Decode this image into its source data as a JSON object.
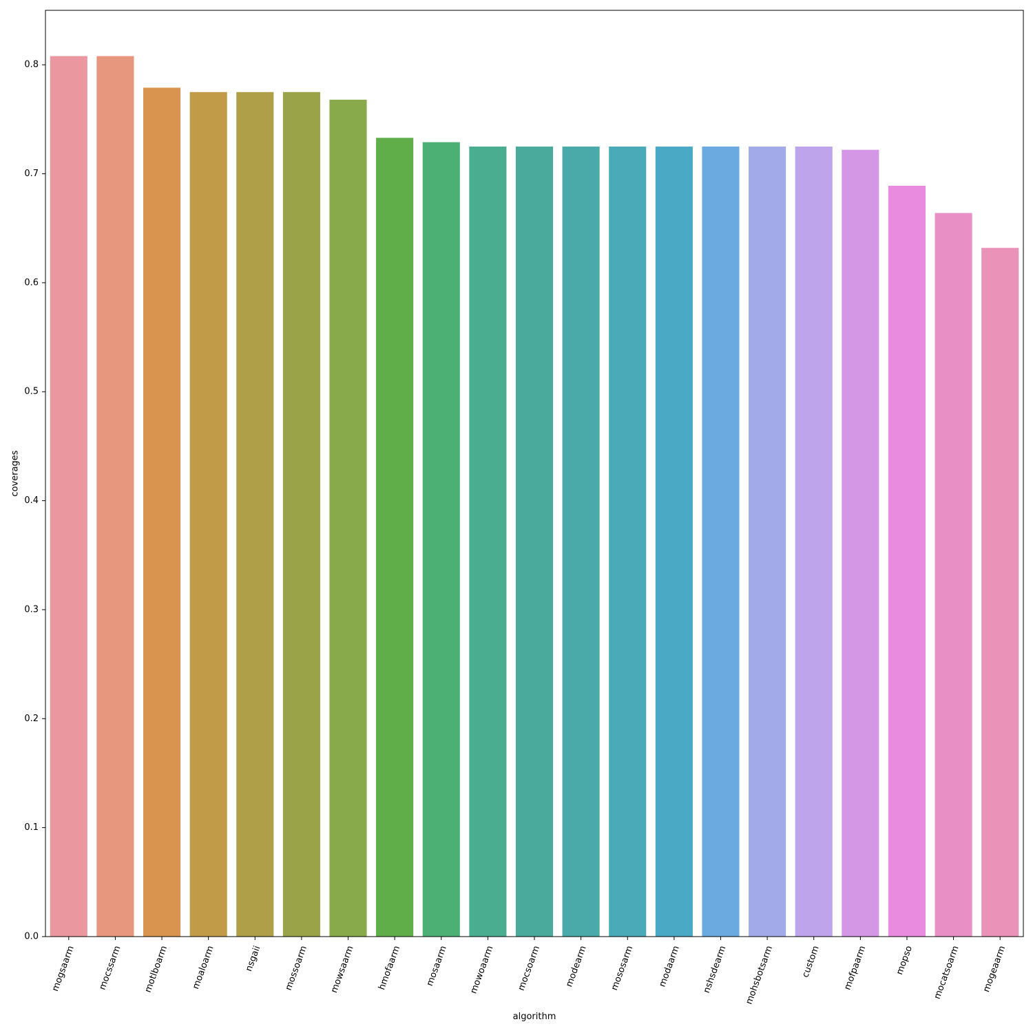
{
  "chart_data": {
    "type": "bar",
    "title": "",
    "xlabel": "algorithm",
    "ylabel": "coverages",
    "ylim": [
      0,
      0.85
    ],
    "yticks": [
      0.0,
      0.1,
      0.2,
      0.3,
      0.4,
      0.5,
      0.6,
      0.7,
      0.8
    ],
    "ytick_labels": [
      "0.0",
      "0.1",
      "0.2",
      "0.3",
      "0.4",
      "0.5",
      "0.6",
      "0.7",
      "0.8"
    ],
    "grid": false,
    "legend": "none",
    "xtick_rotation": 70,
    "categories": [
      "mogsaarm",
      "mocssarm",
      "motlboarm",
      "moaloarm",
      "nsgaii",
      "mossoarm",
      "mowsaarm",
      "hmofaarm",
      "mosaarm",
      "mowoaarm",
      "mocsoarm",
      "modearm",
      "mososarm",
      "modaarm",
      "nshsdearm",
      "mohsbotsarm",
      "custom",
      "mofpaarm",
      "mopso",
      "mocatsoarm",
      "mogeaarm"
    ],
    "values": [
      0.808,
      0.808,
      0.779,
      0.775,
      0.775,
      0.775,
      0.768,
      0.733,
      0.729,
      0.725,
      0.725,
      0.725,
      0.725,
      0.725,
      0.725,
      0.725,
      0.725,
      0.722,
      0.689,
      0.664,
      0.632
    ],
    "colors": [
      "#ea979f",
      "#e8977f",
      "#d9944f",
      "#c19b48",
      "#ae9f48",
      "#9aa347",
      "#88aa4a",
      "#5fae4a",
      "#4caf74",
      "#4bad90",
      "#4aab9d",
      "#4aaaaa",
      "#4aaab7",
      "#4aaac5",
      "#6aaae0",
      "#a2aaea",
      "#bea4ea",
      "#d397e6",
      "#e98cdf",
      "#e890c5",
      "#ea92b7"
    ]
  }
}
